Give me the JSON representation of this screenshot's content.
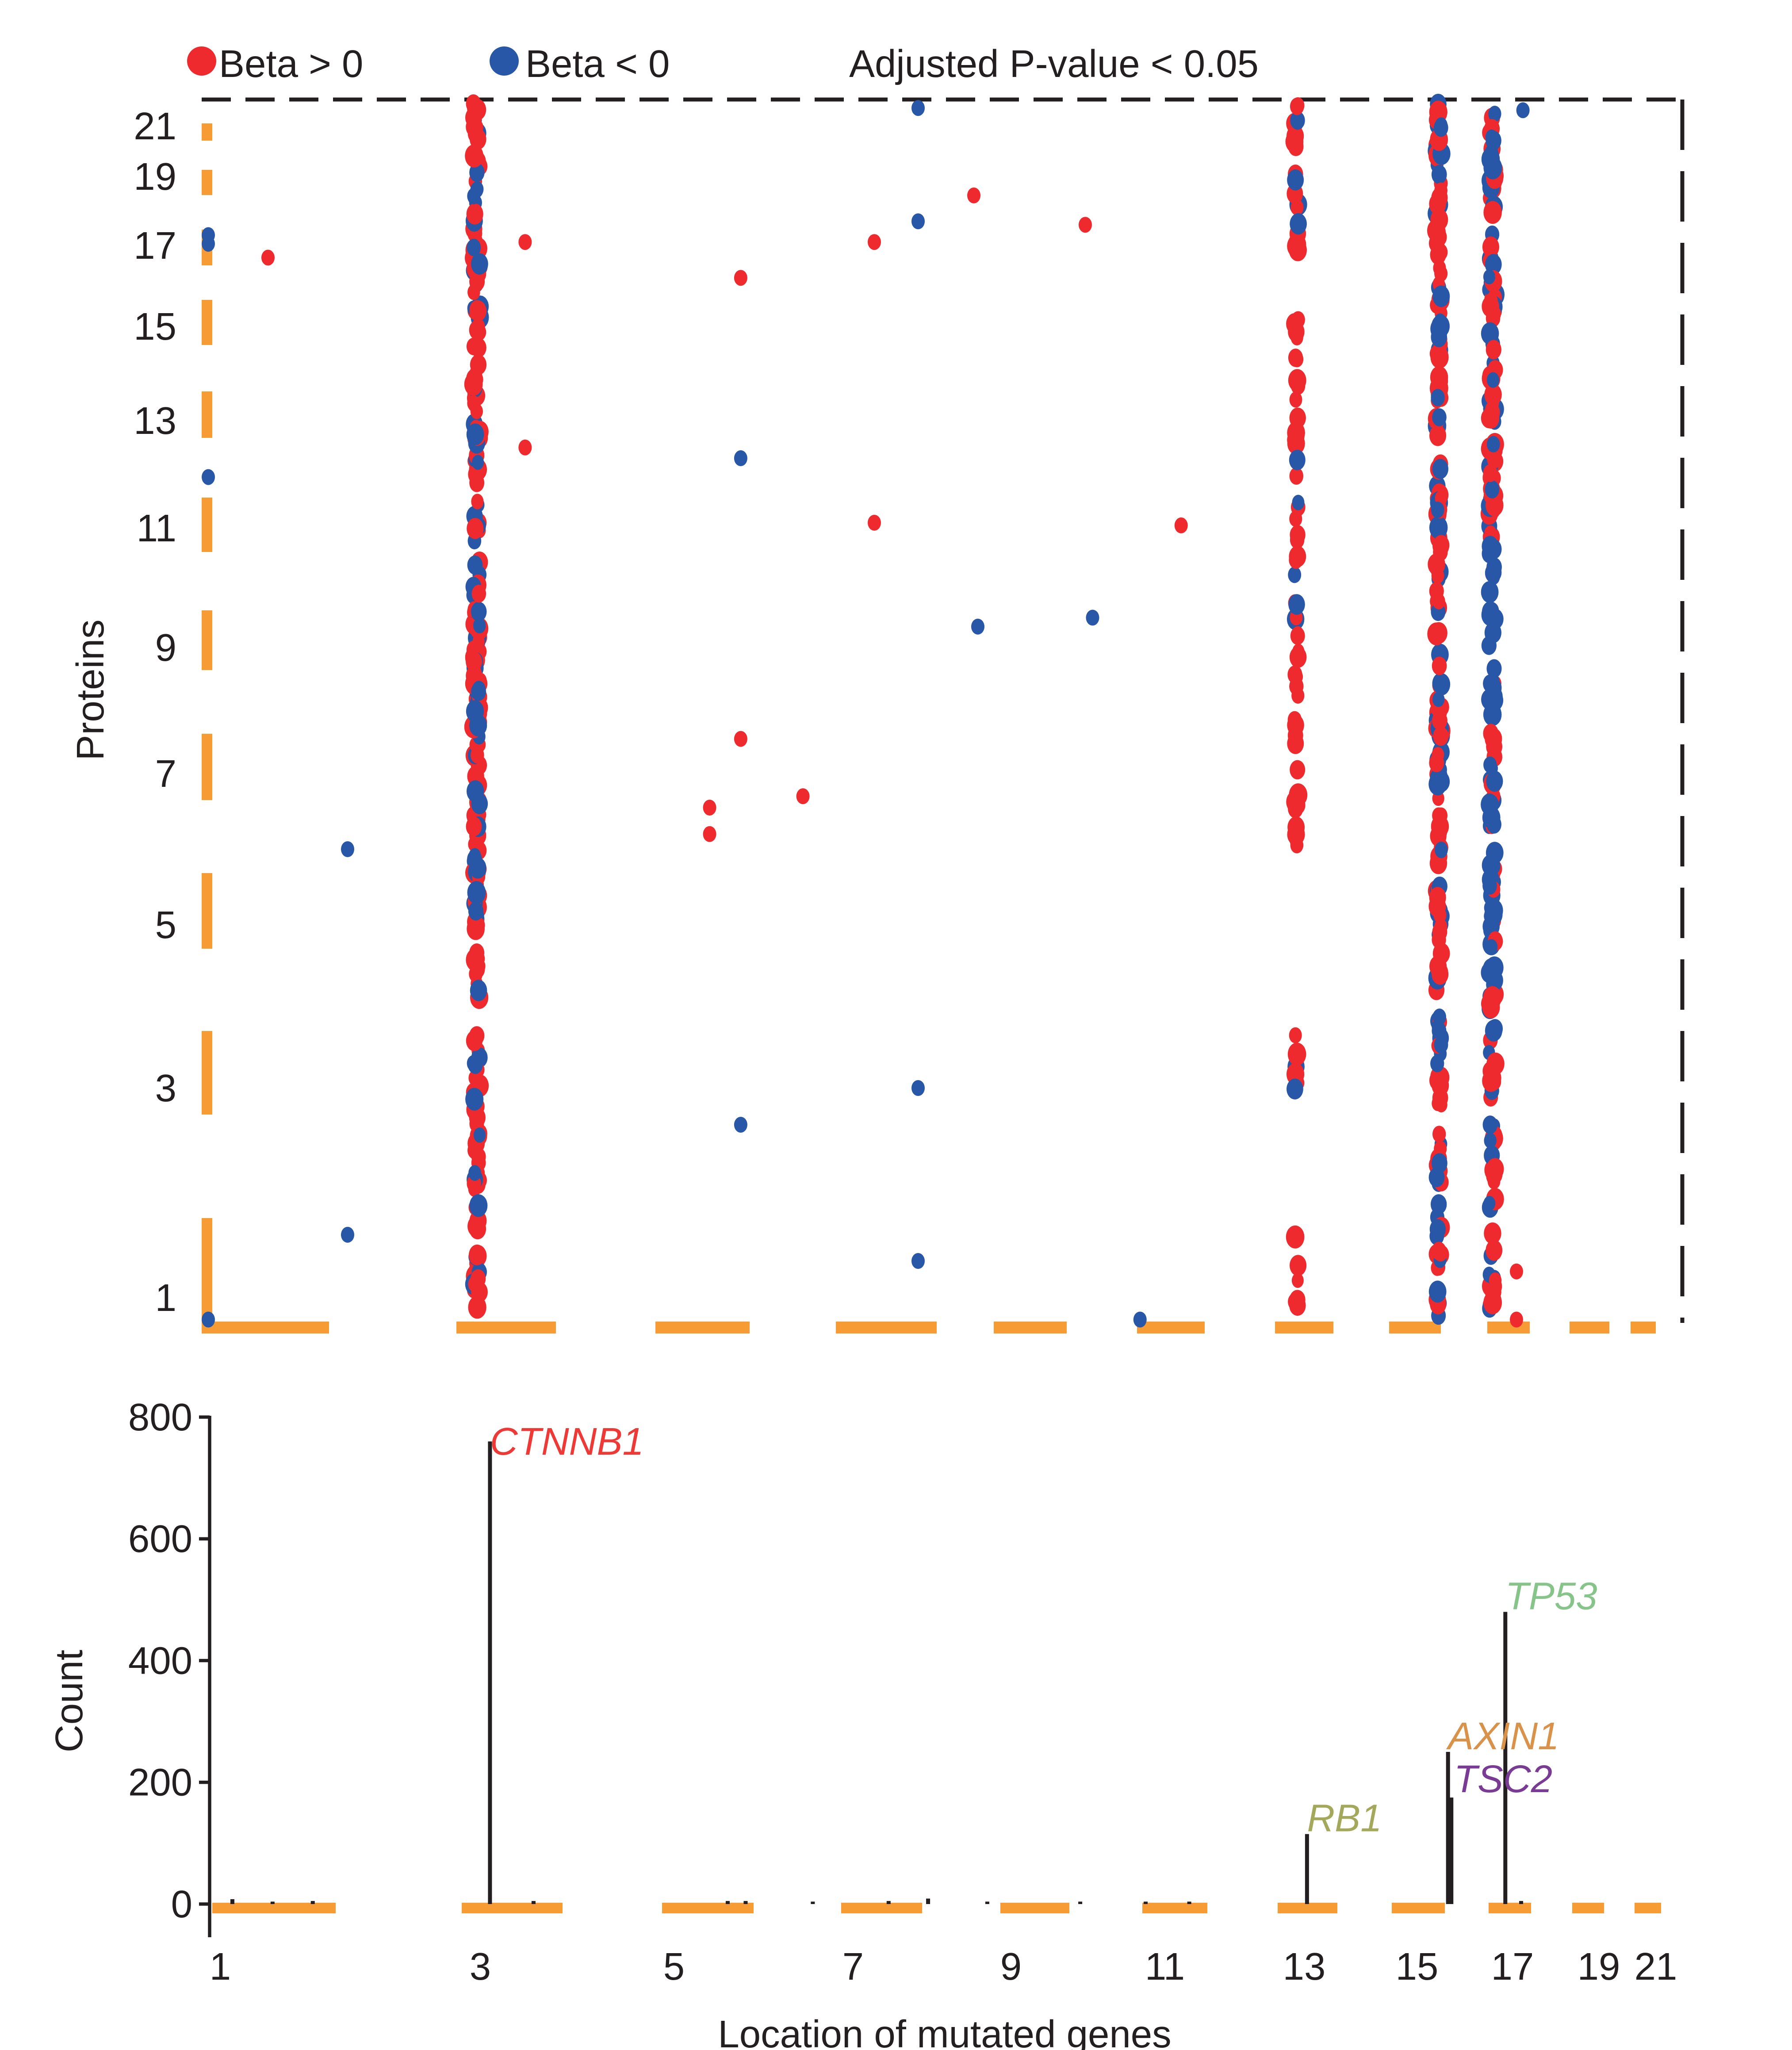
{
  "chart_data": [
    {
      "type": "scatter",
      "title": "",
      "xlabel": "",
      "ylabel": "Proteins",
      "xlim": [
        1,
        22
      ],
      "ylim": [
        1,
        22
      ],
      "grid": false,
      "y_ticks": [
        "1",
        "3",
        "5",
        "7",
        "9",
        "11",
        "13",
        "15",
        "17",
        "19",
        "21"
      ],
      "legend": {
        "placement": "top",
        "entries": [
          {
            "label": "Beta > 0",
            "color": "#ee2a2e"
          },
          {
            "label": "Beta < 0",
            "color": "#2757a6"
          }
        ],
        "note": "Adjusted P-value < 0.05"
      },
      "chromosome_color": "#f79c34",
      "chromosomes": [
        "1",
        "2",
        "3",
        "4",
        "5",
        "6",
        "7",
        "8",
        "9",
        "10",
        "11",
        "12",
        "13",
        "14",
        "15",
        "16",
        "17",
        "18",
        "19",
        "20",
        "21",
        "22"
      ],
      "dense_columns": [
        {
          "gene": "CTNNB1",
          "x": 3.1,
          "y_range": [
            1,
            22
          ],
          "mix": "mostly Beta > 0 with many Beta < 0"
        },
        {
          "gene": "RB1",
          "x": 13.05,
          "y_range": [
            1,
            22
          ],
          "mix": "mostly Beta > 0"
        },
        {
          "gene": "AXIN1/TSC2",
          "x": 15.7,
          "y_range": [
            1,
            22
          ],
          "mix": "mixed Beta > 0 and Beta < 0"
        },
        {
          "gene": "TP53",
          "x": 16.85,
          "y_range": [
            1,
            22
          ],
          "mix": "mixed; Beta < 0 dominant in middle"
        }
      ],
      "series": [
        {
          "name": "Beta > 0",
          "color": "#ee2a2e",
          "points": [
            {
              "x": 1.5,
              "y": 16.7
            },
            {
              "x": 3.6,
              "y": 17.1
            },
            {
              "x": 3.6,
              "y": 12.5
            },
            {
              "x": 5.9,
              "y": 16.2
            },
            {
              "x": 5.9,
              "y": 7.55
            },
            {
              "x": 5.55,
              "y": 6.55
            },
            {
              "x": 5.55,
              "y": 6.2
            },
            {
              "x": 6.6,
              "y": 6.7
            },
            {
              "x": 7.45,
              "y": 17.1
            },
            {
              "x": 7.45,
              "y": 11.1
            },
            {
              "x": 8.7,
              "y": 18.45
            },
            {
              "x": 10.2,
              "y": 17.6
            },
            {
              "x": 11.5,
              "y": 11.05
            },
            {
              "x": 17.4,
              "y": 1.25
            },
            {
              "x": 17.4,
              "y": 0.85
            }
          ]
        },
        {
          "name": "Beta < 0",
          "color": "#2757a6",
          "points": [
            {
              "x": 1.05,
              "y": 17.3
            },
            {
              "x": 1.05,
              "y": 17.05
            },
            {
              "x": 1.05,
              "y": 11.95
            },
            {
              "x": 1.05,
              "y": 0.85
            },
            {
              "x": 2.1,
              "y": 6.0
            },
            {
              "x": 2.1,
              "y": 1.6
            },
            {
              "x": 5.9,
              "y": 12.3
            },
            {
              "x": 5.9,
              "y": 2.65
            },
            {
              "x": 8.0,
              "y": 21.8
            },
            {
              "x": 8.0,
              "y": 17.7
            },
            {
              "x": 8.0,
              "y": 3.0
            },
            {
              "x": 8.0,
              "y": 1.35
            },
            {
              "x": 8.75,
              "y": 9.35
            },
            {
              "x": 10.3,
              "y": 9.5
            },
            {
              "x": 10.95,
              "y": 0.85
            },
            {
              "x": 17.55,
              "y": 21.7
            }
          ]
        }
      ]
    },
    {
      "type": "bar",
      "title": "",
      "xlabel": "Location of mutated genes",
      "ylabel": "Count",
      "ylim": [
        -120,
        800
      ],
      "y_ticks": [
        "0",
        "200",
        "400",
        "600",
        "800"
      ],
      "x_ticks": [
        "1",
        "3",
        "5",
        "7",
        "9",
        "11",
        "13",
        "15",
        "17",
        "19",
        "21"
      ],
      "grid": false,
      "bars": [
        {
          "x": 1.15,
          "value": 8
        },
        {
          "x": 1.45,
          "value": 4
        },
        {
          "x": 1.75,
          "value": 5
        },
        {
          "x": 3.1,
          "value": 760,
          "label": "CTNNB1",
          "label_color": "#ee3a36"
        },
        {
          "x": 3.55,
          "value": 5
        },
        {
          "x": 5.6,
          "value": 5
        },
        {
          "x": 5.8,
          "value": 5
        },
        {
          "x": 6.55,
          "value": 3
        },
        {
          "x": 7.45,
          "value": 5
        },
        {
          "x": 7.95,
          "value": 9
        },
        {
          "x": 8.7,
          "value": 4
        },
        {
          "x": 9.9,
          "value": 3
        },
        {
          "x": 10.75,
          "value": 3
        },
        {
          "x": 11.35,
          "value": 4
        },
        {
          "x": 13.05,
          "value": 115,
          "label": "RB1",
          "label_color": "#a4a85a"
        },
        {
          "x": 15.65,
          "value": 250,
          "label": "AXIN1",
          "label_color": "#d9924a"
        },
        {
          "x": 15.72,
          "value": 175,
          "label": "TSC2",
          "label_color": "#7a3b95"
        },
        {
          "x": 16.85,
          "value": 480,
          "label": "TP53",
          "label_color": "#86c48a"
        },
        {
          "x": 17.2,
          "value": 5
        }
      ]
    }
  ]
}
